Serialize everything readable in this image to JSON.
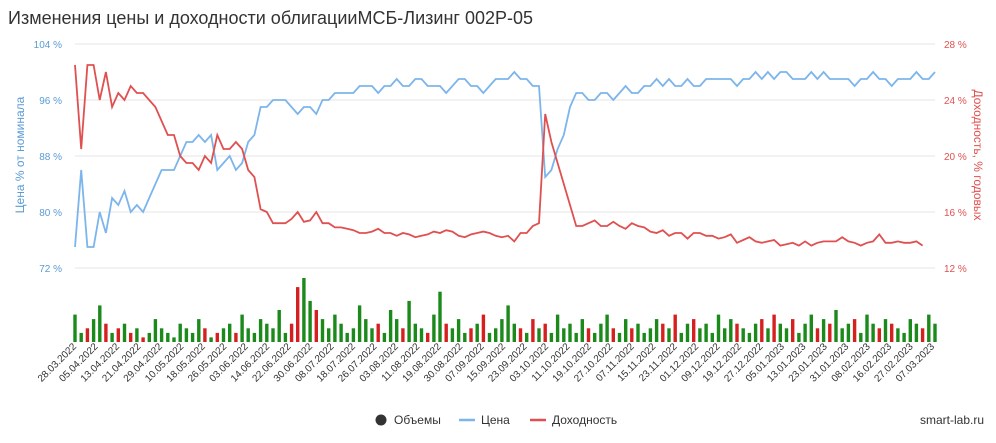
{
  "chart_data": {
    "type": "line",
    "title": "Изменения цены и доходности облигацииМСБ-Лизинг 002Р-05",
    "left_axis": {
      "label": "Цена % от номинала",
      "ticks": [
        "104 %",
        "96 %",
        "88 %",
        "80 %",
        "72 %"
      ],
      "min": 72,
      "max": 104
    },
    "right_axis": {
      "label": "Доходность, % годовых",
      "ticks": [
        "28 %",
        "24 %",
        "20 %",
        "16 %",
        "12 %"
      ],
      "min": 12,
      "max": 28
    },
    "x_ticks": [
      "28.03.2022",
      "05.04.2022",
      "13.04.2022",
      "21.04.2022",
      "29.04.2022",
      "10.05.2022",
      "18.05.2022",
      "26.05.2022",
      "03.06.2022",
      "14.06.2022",
      "22.06.2022",
      "30.06.2022",
      "08.07.2022",
      "18.07.2022",
      "26.07.2022",
      "03.08.2022",
      "11.08.2022",
      "19.08.2022",
      "30.08.2022",
      "07.09.2022",
      "15.09.2022",
      "23.09.2022",
      "03.10.2022",
      "11.10.2022",
      "19.10.2022",
      "27.10.2022",
      "07.11.2022",
      "15.11.2022",
      "23.11.2022",
      "01.12.2022",
      "09.12.2022",
      "19.12.2022",
      "27.12.2022",
      "05.01.2023",
      "13.01.2023",
      "23.01.2023",
      "31.01.2023",
      "08.02.2023",
      "16.02.2023",
      "27.02.2023",
      "07.03.2023"
    ],
    "series": [
      {
        "name": "Цена",
        "color": "#7cb5ec",
        "axis": "left",
        "values": [
          75,
          86,
          75,
          75,
          80,
          77,
          82,
          81,
          83,
          80,
          81,
          80,
          82,
          84,
          86,
          86,
          86,
          88,
          90,
          90,
          91,
          90,
          91,
          86,
          87,
          88,
          86,
          87,
          90,
          91,
          95,
          95,
          96,
          96,
          96,
          95,
          94,
          95,
          95,
          94,
          96,
          96,
          97,
          97,
          97,
          97,
          98,
          98,
          98,
          97,
          98,
          98,
          99,
          98,
          98,
          99,
          99,
          98,
          98,
          98,
          97,
          98,
          99,
          99,
          98,
          98,
          97,
          98,
          99,
          99,
          99,
          100,
          99,
          99,
          98,
          98,
          85,
          86,
          89,
          91,
          95,
          97,
          97,
          96,
          96,
          97,
          97,
          96,
          97,
          98,
          97,
          97,
          98,
          98,
          99,
          98,
          99,
          98,
          98,
          99,
          98,
          98,
          99,
          99,
          99,
          99,
          99,
          98,
          99,
          99,
          100,
          99,
          100,
          99,
          100,
          100,
          99,
          99,
          99,
          100,
          99,
          100,
          99,
          99,
          99,
          99,
          98,
          99,
          99,
          100,
          99,
          99,
          98,
          99,
          99,
          99,
          100,
          99,
          99,
          100
        ]
      },
      {
        "name": "Доходность",
        "color": "#e05050",
        "axis": "right",
        "values": [
          26.5,
          20.5,
          26.5,
          26.5,
          24,
          26,
          23.5,
          24.5,
          24,
          25,
          24.5,
          24.5,
          24,
          23.5,
          22.5,
          21.5,
          21.5,
          20,
          19.5,
          19.5,
          19,
          20,
          19.5,
          21.5,
          20.5,
          20.5,
          21,
          20.5,
          19,
          18.5,
          16.2,
          16,
          15.2,
          15.2,
          15.2,
          15.5,
          16,
          15.3,
          15.4,
          16,
          15.2,
          15.2,
          14.9,
          14.9,
          14.8,
          14.7,
          14.5,
          14.5,
          14.6,
          14.8,
          14.5,
          14.5,
          14.3,
          14.5,
          14.4,
          14.2,
          14.3,
          14.4,
          14.6,
          14.5,
          14.7,
          14.6,
          14.3,
          14.2,
          14.4,
          14.5,
          14.6,
          14.5,
          14.3,
          14.2,
          14.3,
          13.9,
          14.5,
          14.5,
          15,
          15.2,
          23,
          21,
          19.5,
          18,
          16.5,
          15,
          15,
          15.2,
          15.4,
          15,
          15,
          15.3,
          15,
          14.8,
          15.2,
          15,
          14.9,
          14.6,
          14.5,
          14.7,
          14.3,
          14.5,
          14.5,
          14.1,
          14.5,
          14.5,
          14.3,
          14.3,
          14.1,
          14.2,
          14.4,
          13.8,
          14,
          14.2,
          13.9,
          13.8,
          13.9,
          14,
          13.6,
          13.7,
          13.8,
          13.6,
          13.9,
          13.6,
          13.8,
          13.9,
          13.9,
          13.9,
          14.2,
          13.9,
          13.8,
          13.6,
          13.8,
          13.9,
          14.4,
          13.8,
          13.8,
          13.9,
          13.8,
          13.8,
          13.9,
          13.6
        ]
      },
      {
        "name": "Объемы",
        "color": "#333333",
        "type": "bar",
        "values": [
          6,
          2,
          3,
          5,
          8,
          4,
          2,
          3,
          4,
          2,
          3,
          1,
          2,
          5,
          3,
          2,
          1,
          4,
          3,
          2,
          5,
          3,
          1,
          2,
          3,
          4,
          2,
          6,
          3,
          2,
          5,
          4,
          3,
          7,
          2,
          4,
          12,
          14,
          9,
          7,
          5,
          3,
          6,
          4,
          2,
          3,
          8,
          5,
          3,
          4,
          2,
          7,
          5,
          3,
          9,
          4,
          3,
          2,
          6,
          11,
          4,
          3,
          5,
          2,
          3,
          4,
          6,
          2,
          3,
          5,
          8,
          4,
          3,
          2,
          5,
          3,
          4,
          2,
          6,
          3,
          4,
          2,
          5,
          3,
          2,
          4,
          6,
          3,
          2,
          5,
          3,
          4,
          2,
          3,
          5,
          4,
          3,
          6,
          2,
          4,
          5,
          3,
          4,
          2,
          6,
          3,
          5,
          4,
          3,
          2,
          4,
          5,
          3,
          6,
          4,
          3,
          5,
          2,
          4,
          6,
          3,
          5,
          4,
          7,
          3,
          4,
          5,
          2,
          6,
          4,
          3,
          5,
          4,
          3,
          2,
          5,
          4,
          3,
          6,
          4
        ]
      }
    ],
    "legend": {
      "placement": "bottom-center",
      "items": [
        "Объемы",
        "Цена",
        "Доходность"
      ]
    },
    "credit": "smart-lab.ru"
  }
}
